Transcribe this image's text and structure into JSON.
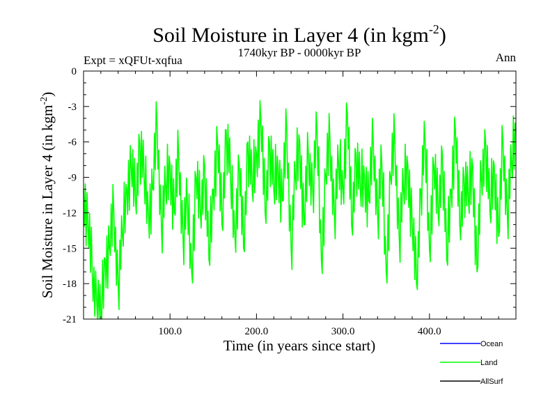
{
  "chart_data": {
    "type": "line",
    "title": "Soil Moisture in Layer 4 (in kgm",
    "title_sup": "-2",
    "title_end": ")",
    "subtitle": "1740kyr BP - 0000kyr BP",
    "left_label": "Expt = xQFUt-xqfua",
    "right_label": "Ann",
    "xlabel": "Time (in years since start)",
    "ylabel": "Soil Moisture in Layer 4 (in kgm",
    "ylabel_sup": "-2",
    "ylabel_end": ")",
    "xlim": [
      0,
      500
    ],
    "ylim": [
      -21,
      0
    ],
    "x_ticks": [
      100,
      200,
      300,
      400
    ],
    "x_tick_labels": [
      "100.0",
      "200.0",
      "300.0",
      "400.0"
    ],
    "y_ticks": [
      0,
      -3,
      -6,
      -9,
      -12,
      -15,
      -18,
      -21
    ],
    "y_tick_labels": [
      "0",
      "-3",
      "-6",
      "-9",
      "-12",
      "-15",
      "-18",
      "-21"
    ],
    "legend": [
      {
        "name": "Ocean",
        "color": "#0000ff"
      },
      {
        "name": "Land",
        "color": "#00ff00"
      },
      {
        "name": "AllSurf",
        "color": "#000000"
      }
    ],
    "series": [
      {
        "name": "Land",
        "color": "#00ff00",
        "x": [
          0,
          5,
          10,
          15,
          20,
          25,
          30,
          35,
          40,
          45,
          50,
          55,
          60,
          65,
          70,
          75,
          80,
          85,
          90,
          95,
          100,
          105,
          110,
          115,
          120,
          125,
          130,
          135,
          140,
          145,
          150,
          155,
          160,
          165,
          170,
          175,
          180,
          185,
          190,
          195,
          200,
          205,
          210,
          215,
          220,
          225,
          230,
          235,
          240,
          245,
          250,
          255,
          260,
          265,
          270,
          275,
          280,
          285,
          290,
          295,
          300,
          305,
          310,
          315,
          320,
          325,
          330,
          335,
          340,
          345,
          350,
          355,
          360,
          365,
          370,
          375,
          380,
          385,
          390,
          395,
          400,
          405,
          410,
          415,
          420,
          425,
          430,
          435,
          440,
          445,
          450,
          455,
          460,
          465,
          470,
          475,
          480,
          485,
          490,
          495,
          500
        ],
        "y": [
          -10,
          -13,
          -17,
          -19,
          -21,
          -16,
          -15,
          -12,
          -18,
          -14,
          -10,
          -8,
          -11,
          -6,
          -9,
          -12,
          -10,
          -4.5,
          -13,
          -10,
          -8,
          -12,
          -7,
          -14,
          -11,
          -17,
          -9,
          -12,
          -8,
          -16,
          -10,
          -6,
          -13,
          -5,
          -9,
          -14,
          -8,
          -15,
          -6,
          -10,
          -7,
          -4,
          -12,
          -6,
          -10,
          -8,
          -11,
          -5,
          -15,
          -9,
          -6,
          -13,
          -7,
          -10,
          -5,
          -16,
          -9,
          -6,
          -12,
          -8,
          -10,
          -3.5,
          -13,
          -7,
          -10,
          -9,
          -11,
          -6,
          -12,
          -8,
          -17,
          -9,
          -6,
          -14,
          -10,
          -8,
          -13,
          -18,
          -10,
          -6,
          -15,
          -8,
          -12,
          -7,
          -16,
          -10,
          -5,
          -13,
          -9,
          -11,
          -8,
          -17,
          -9,
          -6,
          -12,
          -8,
          -14,
          -6,
          -12,
          -8,
          -5
        ]
      }
    ]
  }
}
